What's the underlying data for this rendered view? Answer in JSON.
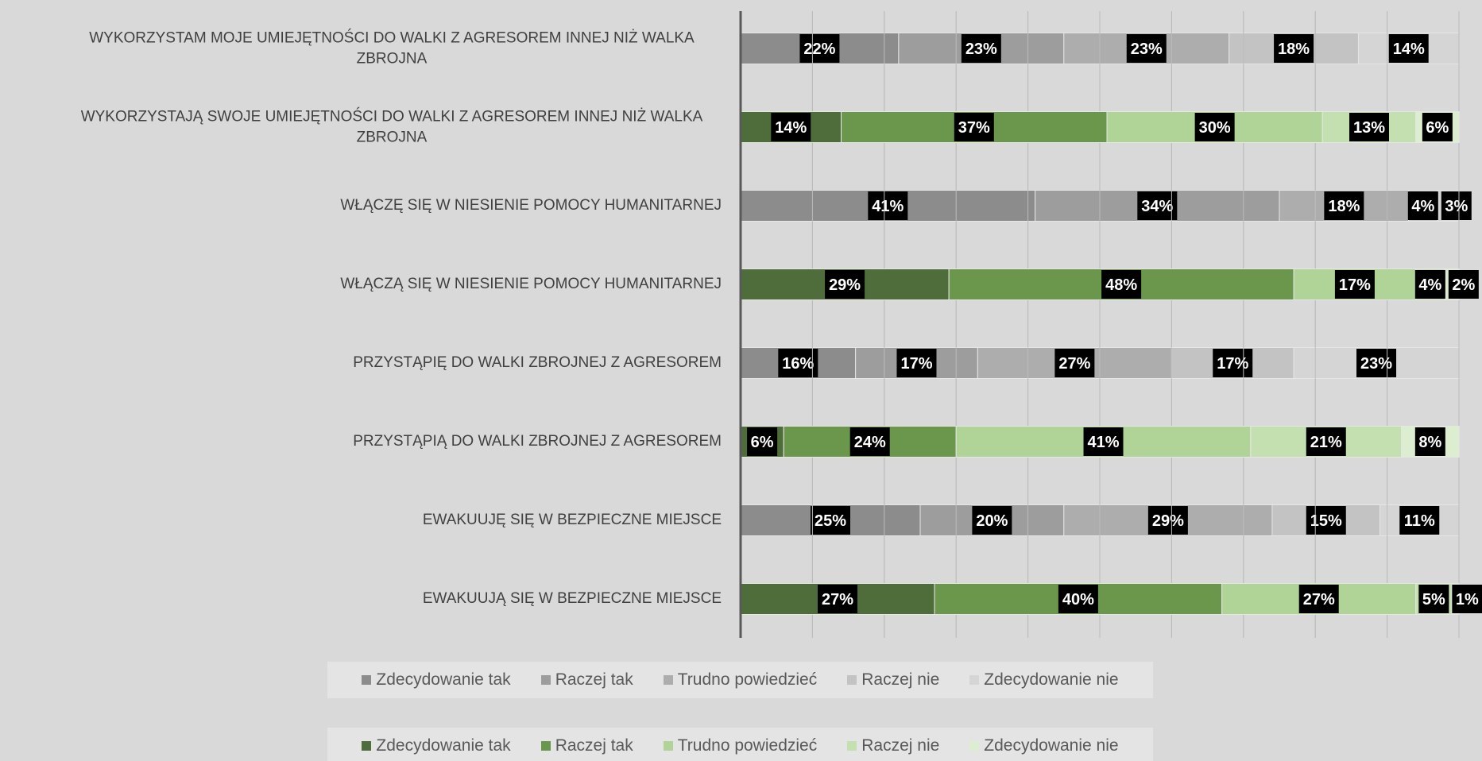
{
  "chart_data": [
    {
      "type": "bar",
      "orientation": "horizontal",
      "stacked": true,
      "categories": [
        "WYKORZYSTAM MOJE UMIEJĘTNOŚCI DO WALKI Z AGRESOREM INNEJ NIŻ WALKA ZBROJNA",
        "WŁĄCZĘ SIĘ W NIESIENIE POMOCY HUMANITARNEJ",
        "PRZYSTĄPIĘ DO WALKI ZBROJNEJ Z AGRESOREM",
        "EWAKUUJĘ SIĘ W BEZPIECZNE MIEJSCE"
      ],
      "xlim": [
        0,
        100
      ],
      "xticks": [
        0,
        10,
        20,
        30,
        40,
        50,
        60,
        70,
        80,
        90,
        100
      ],
      "grid": true,
      "series": [
        {
          "name": "Zdecydowanie tak",
          "color": "#8c8c8c",
          "values": [
            22,
            41,
            16,
            25
          ],
          "value_labels": [
            "22%",
            "41%",
            "16%",
            "25%"
          ]
        },
        {
          "name": "Raczej tak",
          "color": "#9d9d9d",
          "values": [
            23,
            34,
            17,
            20
          ],
          "value_labels": [
            "23%",
            "34%",
            "17%",
            "20%"
          ]
        },
        {
          "name": "Trudno powiedzieć",
          "color": "#adadad",
          "values": [
            23,
            18,
            27,
            29
          ],
          "value_labels": [
            "23%",
            "18%",
            "27%",
            "29%"
          ]
        },
        {
          "name": "Raczej nie",
          "color": "#c3c3c3",
          "values": [
            18,
            4,
            17,
            15
          ],
          "value_labels": [
            "18%",
            "4%",
            "17%",
            "15%"
          ]
        },
        {
          "name": "Zdecydowanie nie",
          "color": "#d5d5d5",
          "values": [
            14,
            3,
            23,
            11
          ],
          "value_labels": [
            "14%",
            "3%",
            "23%",
            "11%"
          ]
        }
      ]
    },
    {
      "type": "bar",
      "orientation": "horizontal",
      "stacked": true,
      "categories": [
        "WYKORZYSTAJĄ SWOJE UMIEJĘTNOŚCI DO WALKI Z AGRESOREM INNEJ NIŻ WALKA ZBROJNA",
        "WŁĄCZĄ SIĘ W NIESIENIE POMOCY HUMANITARNEJ",
        "PRZYSTĄPIĄ DO WALKI ZBROJNEJ Z AGRESOREM",
        "EWAKUUJĄ SIĘ W BEZPIECZNE MIEJSCE"
      ],
      "xlim": [
        0,
        100
      ],
      "xticks": [
        0,
        10,
        20,
        30,
        40,
        50,
        60,
        70,
        80,
        90,
        100
      ],
      "grid": true,
      "series": [
        {
          "name": "Zdecydowanie tak",
          "color": "#4e6d3a",
          "values": [
            14,
            29,
            6,
            27
          ],
          "value_labels": [
            "14%",
            "29%",
            "6%",
            "27%"
          ]
        },
        {
          "name": "Raczej tak",
          "color": "#6a974b",
          "values": [
            37,
            48,
            24,
            40
          ],
          "value_labels": [
            "37%",
            "48%",
            "24%",
            "40%"
          ]
        },
        {
          "name": "Trudno powiedzieć",
          "color": "#b0d398",
          "values": [
            30,
            17,
            41,
            27
          ],
          "value_labels": [
            "30%",
            "17%",
            "41%",
            "27%"
          ]
        },
        {
          "name": "Raczej nie",
          "color": "#c4e0b0",
          "values": [
            13,
            4,
            21,
            5
          ],
          "value_labels": [
            "13%",
            "4%",
            "21%",
            "5%"
          ]
        },
        {
          "name": "Zdecydowanie nie",
          "color": "#dcedd0",
          "values": [
            6,
            2,
            8,
            1
          ],
          "value_labels": [
            "6%",
            "2%",
            "8%",
            "1%"
          ]
        }
      ]
    }
  ]
}
